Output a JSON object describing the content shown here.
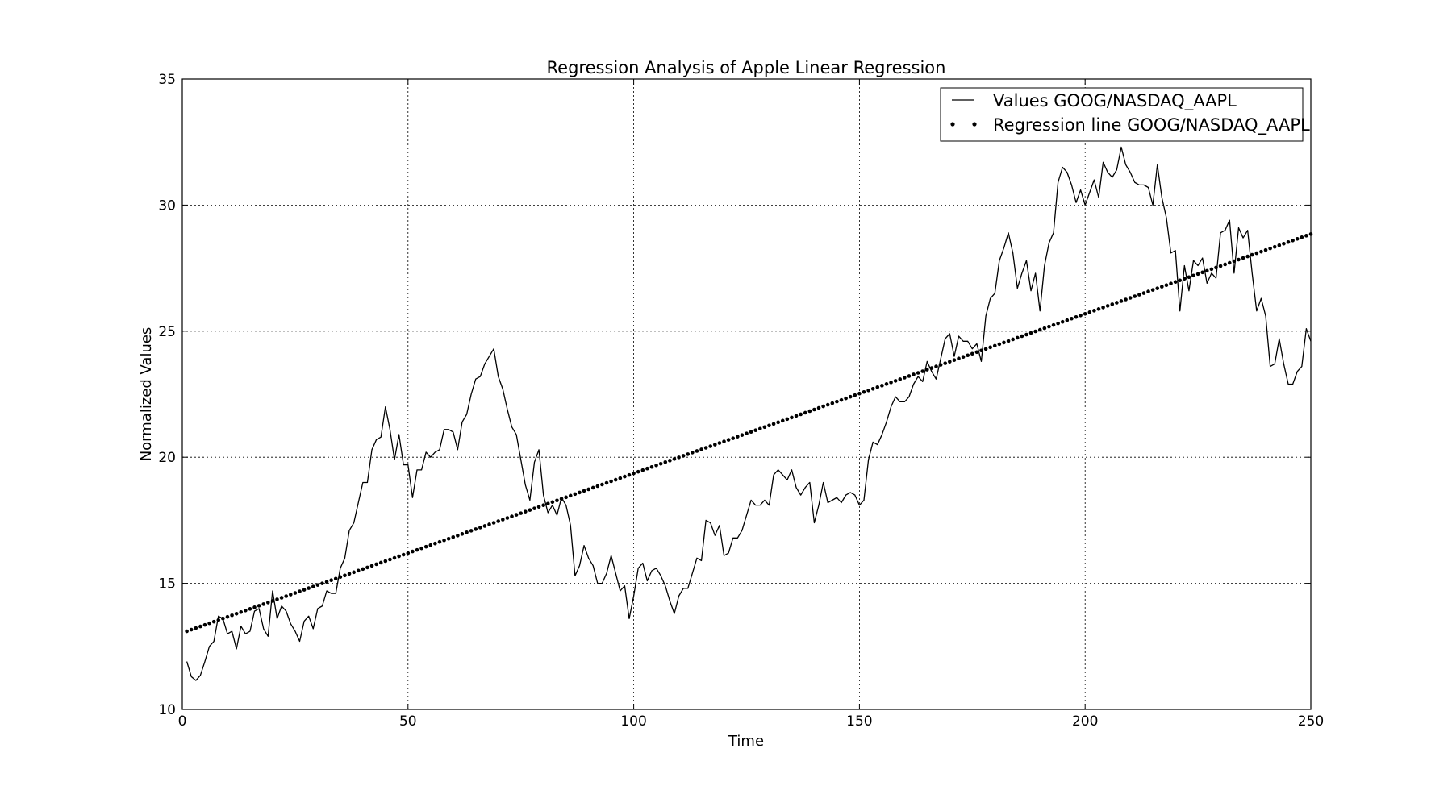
{
  "chart_data": {
    "type": "line",
    "title": "Regression Analysis of Apple Linear Regression",
    "xlabel": "Time",
    "ylabel": "Normalized Values",
    "xlim": [
      0,
      250
    ],
    "ylim": [
      10,
      35
    ],
    "xticks": [
      0,
      50,
      100,
      150,
      200,
      250
    ],
    "yticks": [
      10,
      15,
      20,
      25,
      30,
      35
    ],
    "grid": true,
    "legend_position": "top-right",
    "series": [
      {
        "name": "Values GOOG/NASDAQ_AAPL",
        "style": "line",
        "color": "#000000",
        "x": [
          1,
          2,
          3,
          4,
          5,
          6,
          7,
          8,
          9,
          10,
          11,
          12,
          13,
          14,
          15,
          16,
          17,
          18,
          19,
          20,
          21,
          22,
          23,
          24,
          25,
          26,
          27,
          28,
          29,
          30,
          31,
          32,
          33,
          34,
          35,
          36,
          37,
          38,
          39,
          40,
          41,
          42,
          43,
          44,
          45,
          46,
          47,
          48,
          49,
          50,
          51,
          52,
          53,
          54,
          55,
          56,
          57,
          58,
          59,
          60,
          61,
          62,
          63,
          64,
          65,
          66,
          67,
          68,
          69,
          70,
          71,
          72,
          73,
          74,
          75,
          76,
          77,
          78,
          79,
          80,
          81,
          82,
          83,
          84,
          85,
          86,
          87,
          88,
          89,
          90,
          91,
          92,
          93,
          94,
          95,
          96,
          97,
          98,
          99,
          100,
          101,
          102,
          103,
          104,
          105,
          106,
          107,
          108,
          109,
          110,
          111,
          112,
          113,
          114,
          115,
          116,
          117,
          118,
          119,
          120,
          121,
          122,
          123,
          124,
          125,
          126,
          127,
          128,
          129,
          130,
          131,
          132,
          133,
          134,
          135,
          136,
          137,
          138,
          139,
          140,
          141,
          142,
          143,
          144,
          145,
          146,
          147,
          148,
          149,
          150,
          151,
          152,
          153,
          154,
          155,
          156,
          157,
          158,
          159,
          160,
          161,
          162,
          163,
          164,
          165,
          166,
          167,
          168,
          169,
          170,
          171,
          172,
          173,
          174,
          175,
          176,
          177,
          178,
          179,
          180,
          181,
          182,
          183,
          184,
          185,
          186,
          187,
          188,
          189,
          190,
          191,
          192,
          193,
          194,
          195,
          196,
          197,
          198,
          199,
          200,
          201,
          202,
          203,
          204,
          205,
          206,
          207,
          208,
          209,
          210,
          211,
          212,
          213,
          214,
          215,
          216,
          217,
          218,
          219,
          220,
          221,
          222,
          223,
          224,
          225,
          226,
          227,
          228,
          229,
          230,
          231,
          232,
          233,
          234,
          235,
          236,
          237,
          238,
          239,
          240,
          241,
          242,
          243,
          244,
          245,
          246,
          247,
          248,
          249,
          250
        ],
        "values": [
          11.9,
          11.3,
          11.15,
          11.35,
          11.9,
          12.5,
          12.7,
          13.7,
          13.6,
          13.0,
          13.1,
          12.4,
          13.3,
          13.0,
          13.1,
          13.9,
          14.0,
          13.2,
          12.9,
          14.7,
          13.6,
          14.1,
          13.9,
          13.4,
          13.1,
          12.7,
          13.5,
          13.7,
          13.2,
          14.0,
          14.1,
          14.7,
          14.6,
          14.6,
          15.6,
          16.0,
          17.1,
          17.4,
          18.2,
          19.0,
          19.0,
          20.3,
          20.7,
          20.8,
          22.0,
          21.1,
          19.9,
          20.9,
          19.7,
          19.7,
          18.4,
          19.5,
          19.5,
          20.2,
          20.0,
          20.2,
          20.3,
          21.1,
          21.1,
          21.0,
          20.3,
          21.4,
          21.7,
          22.5,
          23.1,
          23.2,
          23.7,
          24.0,
          24.3,
          23.2,
          22.7,
          21.9,
          21.2,
          20.9,
          19.9,
          18.9,
          18.3,
          19.8,
          20.3,
          18.5,
          17.8,
          18.1,
          17.7,
          18.4,
          18.1,
          17.3,
          15.3,
          15.7,
          16.5,
          16.0,
          15.7,
          15.0,
          15.0,
          15.4,
          16.1,
          15.4,
          14.7,
          14.9,
          13.6,
          14.5,
          15.6,
          15.8,
          15.1,
          15.5,
          15.6,
          15.3,
          14.9,
          14.3,
          13.8,
          14.5,
          14.8,
          14.8,
          15.4,
          16.0,
          15.9,
          17.5,
          17.4,
          16.9,
          17.3,
          16.1,
          16.2,
          16.8,
          16.8,
          17.1,
          17.7,
          18.3,
          18.1,
          18.1,
          18.3,
          18.1,
          19.3,
          19.5,
          19.3,
          19.1,
          19.5,
          18.8,
          18.5,
          18.8,
          19.0,
          17.4,
          18.1,
          19.0,
          18.2,
          18.3,
          18.4,
          18.2,
          18.5,
          18.6,
          18.5,
          18.1,
          18.3,
          19.9,
          20.6,
          20.5,
          20.9,
          21.4,
          22.0,
          22.4,
          22.2,
          22.2,
          22.4,
          22.9,
          23.2,
          23.0,
          23.8,
          23.4,
          23.1,
          23.9,
          24.7,
          24.9,
          24.0,
          24.8,
          24.6,
          24.6,
          24.3,
          24.5,
          23.8,
          25.6,
          26.3,
          26.5,
          27.8,
          28.3,
          28.9,
          28.1,
          26.7,
          27.3,
          27.8,
          26.6,
          27.3,
          25.8,
          27.6,
          28.5,
          28.9,
          30.9,
          31.5,
          31.3,
          30.8,
          30.1,
          30.6,
          30.0,
          30.5,
          31.0,
          30.3,
          31.7,
          31.3,
          31.1,
          31.4,
          32.3,
          31.6,
          31.3,
          30.9,
          30.8,
          30.8,
          30.7,
          30.0,
          31.6,
          30.3,
          29.5,
          28.1,
          28.2,
          25.8,
          27.6,
          26.6,
          27.8,
          27.6,
          27.9,
          26.9,
          27.3,
          27.1,
          28.9,
          29.0,
          29.4,
          27.3,
          29.1,
          28.7,
          29.0,
          27.3,
          25.8,
          26.3,
          25.6,
          23.6,
          23.7,
          24.7,
          23.7,
          22.9,
          22.9,
          23.4,
          23.6,
          25.1,
          24.6
        ]
      },
      {
        "name": "Regression line GOOG/NASDAQ_AAPL",
        "style": "dots",
        "color": "#000000",
        "x_start": 1,
        "x_end": 250,
        "y_start": 13.1,
        "y_end": 28.85
      }
    ]
  }
}
